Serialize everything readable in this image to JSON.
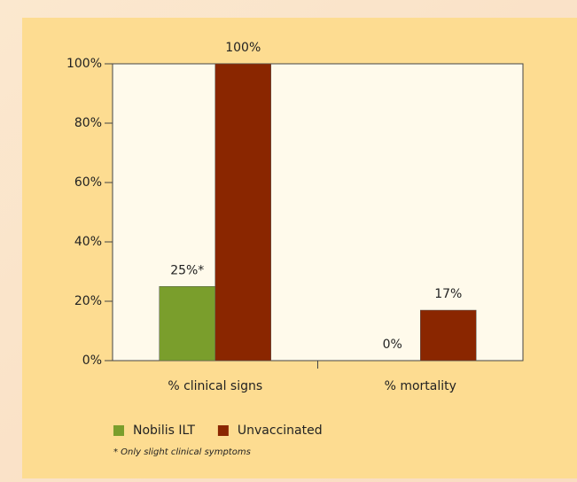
{
  "chart_data": {
    "type": "bar",
    "categories": [
      "% clinical signs",
      "% mortality"
    ],
    "series": [
      {
        "name": "Nobilis ILT",
        "color": "#7a9e2c",
        "values": [
          25,
          0
        ],
        "value_labels": [
          "25%*",
          "0%"
        ]
      },
      {
        "name": "Unvaccinated",
        "color": "#8a2600",
        "values": [
          100,
          17
        ],
        "value_labels": [
          "100%",
          "17%"
        ]
      }
    ],
    "ylim": [
      0,
      100
    ],
    "yticks": [
      {
        "value": 0,
        "label": "0%"
      },
      {
        "value": 20,
        "label": "20%"
      },
      {
        "value": 40,
        "label": "40%"
      },
      {
        "value": 60,
        "label": "60%"
      },
      {
        "value": 80,
        "label": "80%"
      },
      {
        "value": 100,
        "label": "100%"
      }
    ],
    "footnote": "* Only slight clinical symptoms"
  }
}
